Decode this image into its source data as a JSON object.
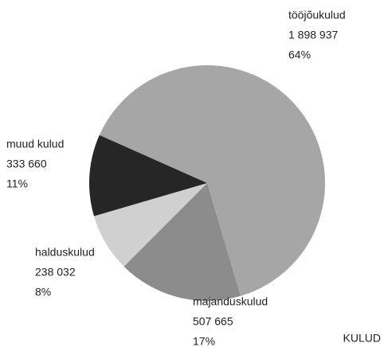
{
  "chart_data": {
    "type": "pie",
    "title": "KULUD",
    "categories": [
      "tööjõukulud",
      "majanduskulud",
      "halduskulud",
      "muud kulud"
    ],
    "values": [
      1898937,
      507665,
      238032,
      333660
    ],
    "value_labels": [
      "1 898 937",
      "507 665",
      "238 032",
      "333 660"
    ],
    "percent_labels": [
      "64%",
      "17%",
      "8%",
      "11%"
    ],
    "colors": [
      "#a6a6a6",
      "#8c8c8c",
      "#d0d0d0",
      "#262626"
    ]
  }
}
